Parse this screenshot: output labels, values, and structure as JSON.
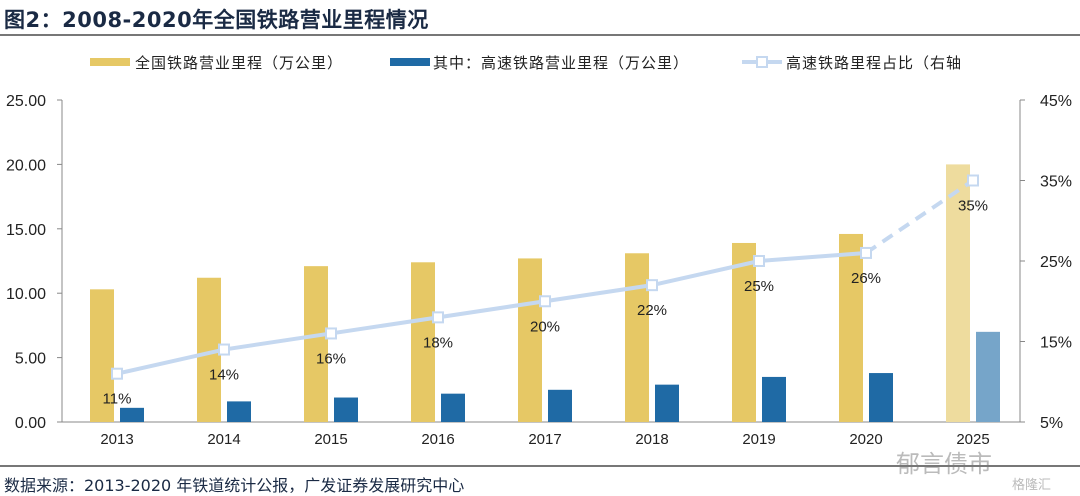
{
  "title": "图2：2008-2020年全国铁路营业里程情况",
  "source": "数据来源：2013-2020 年铁道统计公报，广发证券发展研究中心",
  "watermark": "郁言债市",
  "watermark_small": "格隆汇",
  "chart_data": {
    "type": "bar",
    "categories": [
      "2013",
      "2014",
      "2015",
      "2016",
      "2017",
      "2018",
      "2019",
      "2020",
      "2025"
    ],
    "series": [
      {
        "name": "全国铁路营业里程（万公里）",
        "type": "bar",
        "axis": "left",
        "color": "#E6C865",
        "values": [
          10.3,
          11.2,
          12.1,
          12.4,
          12.7,
          13.1,
          13.9,
          14.6,
          20.0
        ]
      },
      {
        "name": "其中：高速铁路营业里程（万公里）",
        "type": "bar",
        "axis": "left",
        "color": "#1F6AA5",
        "values": [
          1.1,
          1.6,
          1.9,
          2.2,
          2.5,
          2.9,
          3.5,
          3.8,
          7.0
        ]
      },
      {
        "name": "高速铁路里程占比（右轴",
        "type": "line",
        "axis": "right",
        "color": "#C5D8F0",
        "values": [
          11,
          14,
          16,
          18,
          20,
          22,
          25,
          26,
          35
        ],
        "data_labels": [
          "11%",
          "14%",
          "16%",
          "18%",
          "20%",
          "22%",
          "25%",
          "26%",
          "35%"
        ]
      }
    ],
    "projected_category": "2025",
    "projected_colors": {
      "bar1": "#EEDC9E",
      "bar2": "#76A5C9"
    },
    "ylim_left": [
      0,
      25
    ],
    "yticks_left": [
      "0.00",
      "5.00",
      "10.00",
      "15.00",
      "20.00",
      "25.00"
    ],
    "ylim_right": [
      5,
      45
    ],
    "yticks_right": [
      "5%",
      "15%",
      "25%",
      "35%",
      "45%"
    ],
    "legend_position": "top",
    "grid": false
  }
}
